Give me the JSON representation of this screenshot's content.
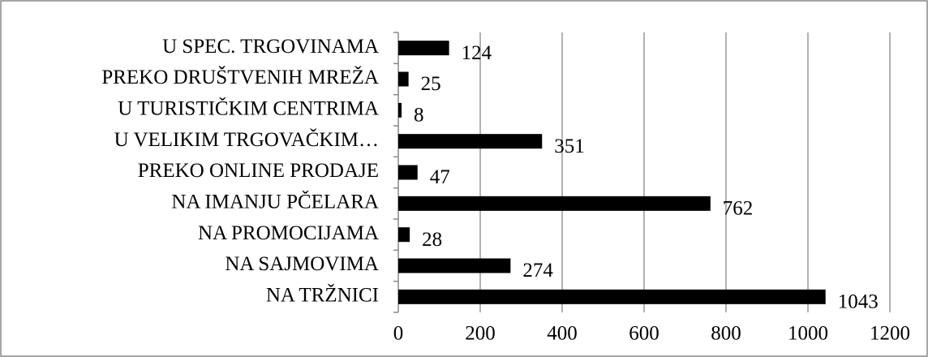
{
  "chart_data": {
    "type": "bar",
    "orientation": "horizontal",
    "categories": [
      "U SPEC. TRGOVINAMA",
      "PREKO DRUŠTVENIH MREŽA",
      "U TURISTIČKIM CENTRIMA",
      "U VELIKIM TRGOVAČKIM…",
      "PREKO ONLINE PRODAJE",
      "NA IMANJU PČELARA",
      "NA PROMOCIJAMA",
      "NA SAJMOVIMA",
      "NA TRŽNICI"
    ],
    "values": [
      124,
      25,
      8,
      351,
      47,
      762,
      28,
      274,
      1043
    ],
    "color": "#000000",
    "xlim": [
      0,
      1200
    ],
    "xticks": [
      0,
      200,
      400,
      600,
      800,
      1000,
      1200
    ],
    "grid": true
  }
}
